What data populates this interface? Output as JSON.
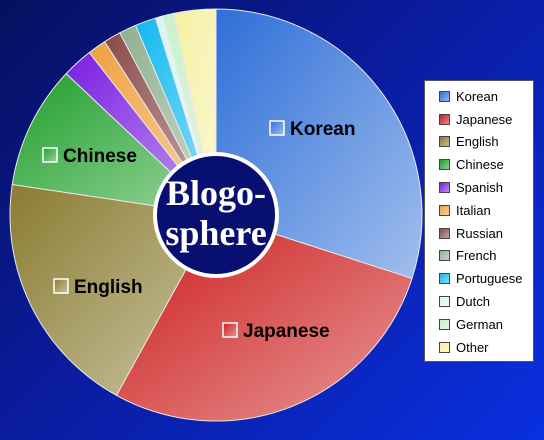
{
  "chart_data": {
    "type": "pie",
    "center_label": [
      "Blogo-",
      "sphere"
    ],
    "start_angle_deg": 0,
    "direction": "clockwise",
    "slices": [
      {
        "label": "Korean",
        "value": 31.0,
        "color": "#2f6fd8",
        "labeled": true
      },
      {
        "label": "Japanese",
        "value": 29.0,
        "color": "#cc1a1a",
        "labeled": true
      },
      {
        "label": "English",
        "value": 20.0,
        "color": "#8a7c32",
        "labeled": true
      },
      {
        "label": "Chinese",
        "value": 10.0,
        "color": "#1f9f2a",
        "labeled": true
      },
      {
        "label": "Spanish",
        "value": 2.5,
        "color": "#7a1fe0",
        "labeled": false
      },
      {
        "label": "Italian",
        "value": 1.5,
        "color": "#f0a040",
        "labeled": false
      },
      {
        "label": "Russian",
        "value": 1.4,
        "color": "#8a4a4a",
        "labeled": false
      },
      {
        "label": "French",
        "value": 1.4,
        "color": "#8fb08f",
        "labeled": false
      },
      {
        "label": "Portuguese",
        "value": 1.7,
        "color": "#10b8f0",
        "labeled": false
      },
      {
        "label": "Dutch",
        "value": 0.6,
        "color": "#d8f4f8",
        "labeled": false
      },
      {
        "label": "German",
        "value": 0.9,
        "color": "#c8f0c8",
        "labeled": false
      },
      {
        "label": "Other",
        "value": 3.4,
        "color": "#f6f0a0",
        "labeled": false
      }
    ],
    "legend": {
      "placement": "right"
    }
  }
}
